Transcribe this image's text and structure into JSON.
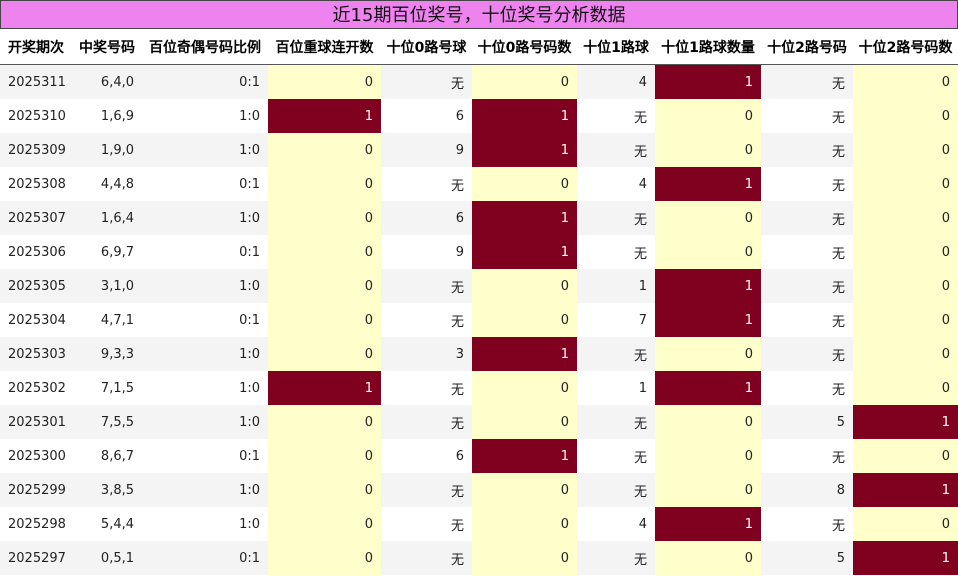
{
  "title": "近15期百位奖号，十位奖号分析数据",
  "columns": [
    "开奖期次",
    "中奖号码",
    "百位奇偶号码比例",
    "百位重球连开数",
    "十位0路号球",
    "十位0路号码数",
    "十位1路球",
    "十位1路球数量",
    "十位2路号码",
    "十位2路号码数"
  ],
  "rows": [
    [
      "2025311",
      "6,4,0",
      "0:1",
      "0",
      "无",
      "0",
      "4",
      "1",
      "无",
      "0"
    ],
    [
      "2025310",
      "1,6,9",
      "1:0",
      "1",
      "6",
      "1",
      "无",
      "0",
      "无",
      "0"
    ],
    [
      "2025309",
      "1,9,0",
      "1:0",
      "0",
      "9",
      "1",
      "无",
      "0",
      "无",
      "0"
    ],
    [
      "2025308",
      "4,4,8",
      "0:1",
      "0",
      "无",
      "0",
      "4",
      "1",
      "无",
      "0"
    ],
    [
      "2025307",
      "1,6,4",
      "1:0",
      "0",
      "6",
      "1",
      "无",
      "0",
      "无",
      "0"
    ],
    [
      "2025306",
      "6,9,7",
      "0:1",
      "0",
      "9",
      "1",
      "无",
      "0",
      "无",
      "0"
    ],
    [
      "2025305",
      "3,1,0",
      "1:0",
      "0",
      "无",
      "0",
      "1",
      "1",
      "无",
      "0"
    ],
    [
      "2025304",
      "4,7,1",
      "0:1",
      "0",
      "无",
      "0",
      "7",
      "1",
      "无",
      "0"
    ],
    [
      "2025303",
      "9,3,3",
      "1:0",
      "0",
      "3",
      "1",
      "无",
      "0",
      "无",
      "0"
    ],
    [
      "2025302",
      "7,1,5",
      "1:0",
      "1",
      "无",
      "0",
      "1",
      "1",
      "无",
      "0"
    ],
    [
      "2025301",
      "7,5,5",
      "1:0",
      "0",
      "无",
      "0",
      "无",
      "0",
      "5",
      "1"
    ],
    [
      "2025300",
      "8,6,7",
      "0:1",
      "0",
      "6",
      "1",
      "无",
      "0",
      "无",
      "0"
    ],
    [
      "2025299",
      "3,8,5",
      "1:0",
      "0",
      "无",
      "0",
      "无",
      "0",
      "8",
      "1"
    ],
    [
      "2025298",
      "5,4,4",
      "1:0",
      "0",
      "无",
      "0",
      "4",
      "1",
      "无",
      "0"
    ],
    [
      "2025297",
      "0,5,1",
      "0:1",
      "0",
      "无",
      "0",
      "无",
      "0",
      "5",
      "1"
    ]
  ],
  "colors": {
    "title_bg": "#ee82ee",
    "highlight": "#800020",
    "count_bg": "#ffffcc",
    "alt_row": "#f4f4f4"
  }
}
